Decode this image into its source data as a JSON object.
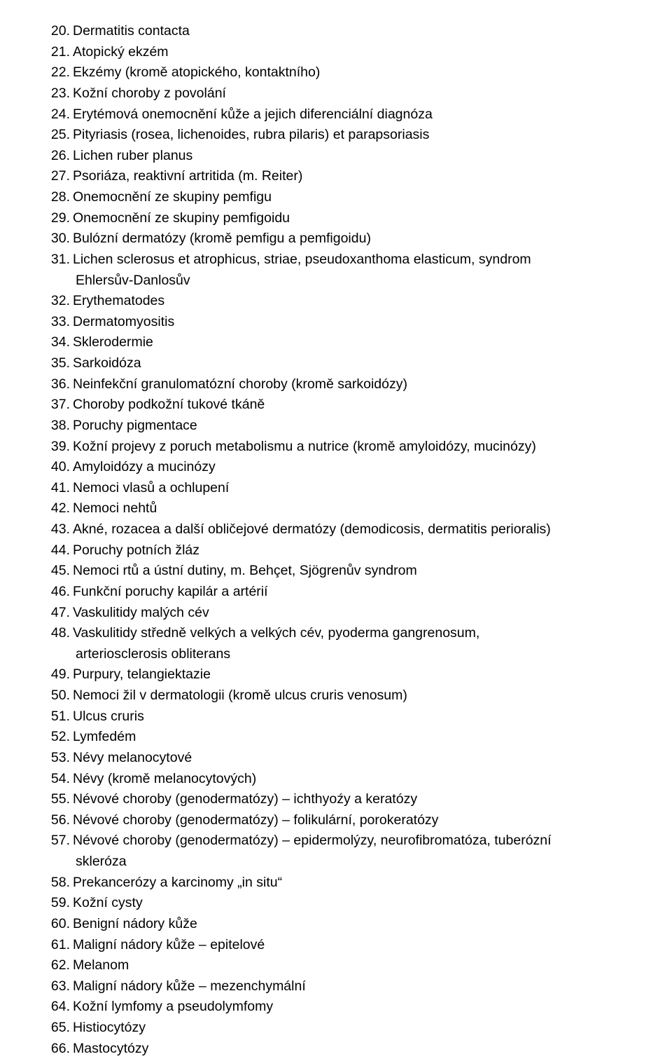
{
  "document": {
    "font_family": "Arial",
    "font_size_pt": 15,
    "line_height": 1.52,
    "text_color": "#000000",
    "background_color": "#ffffff",
    "items": [
      {
        "num": "20.",
        "text": "Dermatitis contacta",
        "cont": null
      },
      {
        "num": "21.",
        "text": "Atopický ekzém",
        "cont": null
      },
      {
        "num": "22.",
        "text": "Ekzémy (kromě atopického, kontaktního)",
        "cont": null
      },
      {
        "num": "23.",
        "text": "Kožní choroby z povolání",
        "cont": null
      },
      {
        "num": "24.",
        "text": "Erytémová onemocnění kůže a jejich diferenciální diagnóza",
        "cont": null
      },
      {
        "num": "25.",
        "text": "Pityriasis (rosea, lichenoides, rubra pilaris) et parapsoriasis",
        "cont": null
      },
      {
        "num": "26.",
        "text": "Lichen ruber planus",
        "cont": null
      },
      {
        "num": "27.",
        "text": "Psoriáza, reaktivní artritida (m. Reiter)",
        "cont": null
      },
      {
        "num": "28.",
        "text": "Onemocnění ze skupiny pemfigu",
        "cont": null
      },
      {
        "num": "29.",
        "text": "Onemocnění ze skupiny pemfigoidu",
        "cont": null
      },
      {
        "num": "30.",
        "text": "Bulózní dermatózy (kromě pemfigu a pemfigoidu)",
        "cont": null
      },
      {
        "num": "31.",
        "text": "Lichen sclerosus et atrophicus, striae, pseudoxanthoma elasticum, syndrom",
        "cont": "Ehlersův-Danlosův"
      },
      {
        "num": "32.",
        "text": "Erythematodes",
        "cont": null
      },
      {
        "num": "33.",
        "text": "Dermatomyositis",
        "cont": null
      },
      {
        "num": "34.",
        "text": "Sklerodermie",
        "cont": null
      },
      {
        "num": "35.",
        "text": "Sarkoidóza",
        "cont": null
      },
      {
        "num": "36.",
        "text": "Neinfekční granulomatózní choroby (kromě sarkoidózy)",
        "cont": null
      },
      {
        "num": "37.",
        "text": "Choroby podkožní tukové tkáně",
        "cont": null
      },
      {
        "num": "38.",
        "text": "Poruchy pigmentace",
        "cont": null
      },
      {
        "num": "39.",
        "text": "Kožní projevy z poruch metabolismu a nutrice (kromě amyloidózy, mucinózy)",
        "cont": null
      },
      {
        "num": "40.",
        "text": "Amyloidózy a mucinózy",
        "cont": null
      },
      {
        "num": "41.",
        "text": "Nemoci vlasů a ochlupení",
        "cont": null
      },
      {
        "num": "42.",
        "text": "Nemoci nehtů",
        "cont": null
      },
      {
        "num": "43.",
        "text": "Akné, rozacea a další obličejové dermatózy (demodicosis, dermatitis perioralis)",
        "cont": null
      },
      {
        "num": "44.",
        "text": "Poruchy potních žláz",
        "cont": null
      },
      {
        "num": "45.",
        "text": "Nemoci rtů a ústní dutiny, m. Behçet, Sjögrenův syndrom",
        "cont": null
      },
      {
        "num": "46.",
        "text": "Funkční poruchy kapilár a artérií",
        "cont": null
      },
      {
        "num": "47.",
        "text": "Vaskulitidy malých cév",
        "cont": null
      },
      {
        "num": "48.",
        "text": "Vaskulitidy středně velkých a velkých cév, pyoderma gangrenosum,",
        "cont": "arteriosclerosis obliterans"
      },
      {
        "num": "49.",
        "text": "Purpury, telangiektazie",
        "cont": null
      },
      {
        "num": "50.",
        "text": "Nemoci žil v dermatologii (kromě ulcus cruris venosum)",
        "cont": null
      },
      {
        "num": "51.",
        "text": "Ulcus cruris",
        "cont": null
      },
      {
        "num": "52.",
        "text": "Lymfedém",
        "cont": null
      },
      {
        "num": "53.",
        "text": "Névy melanocytové",
        "cont": null
      },
      {
        "num": "54.",
        "text": "Névy (kromě melanocytových)",
        "cont": null
      },
      {
        "num": "55.",
        "text": "Névové choroby (genodermatózy) – ichthyoźy a keratózy",
        "cont": null
      },
      {
        "num": "56.",
        "text": "Névové choroby (genodermatózy) – folikulární, porokeratózy",
        "cont": null
      },
      {
        "num": "57.",
        "text": "Névové choroby (genodermatózy) – epidermolýzy, neurofibromatóza, tuberózní",
        "cont": "skleróza"
      },
      {
        "num": "58.",
        "text": "Prekancerózy a karcinomy „in situ“",
        "cont": null
      },
      {
        "num": "59.",
        "text": "Kožní cysty",
        "cont": null
      },
      {
        "num": "60.",
        "text": "Benigní nádory kůže",
        "cont": null
      },
      {
        "num": "61.",
        "text": "Maligní nádory kůže – epitelové",
        "cont": null
      },
      {
        "num": "62.",
        "text": "Melanom",
        "cont": null
      },
      {
        "num": "63.",
        "text": "Maligní nádory kůže – mezenchymální",
        "cont": null
      },
      {
        "num": "64.",
        "text": "Kožní lymfomy a pseudolymfomy",
        "cont": null
      },
      {
        "num": "65.",
        "text": "Histiocytózy",
        "cont": null
      },
      {
        "num": "66.",
        "text": "Mastocytózy",
        "cont": null
      }
    ]
  }
}
